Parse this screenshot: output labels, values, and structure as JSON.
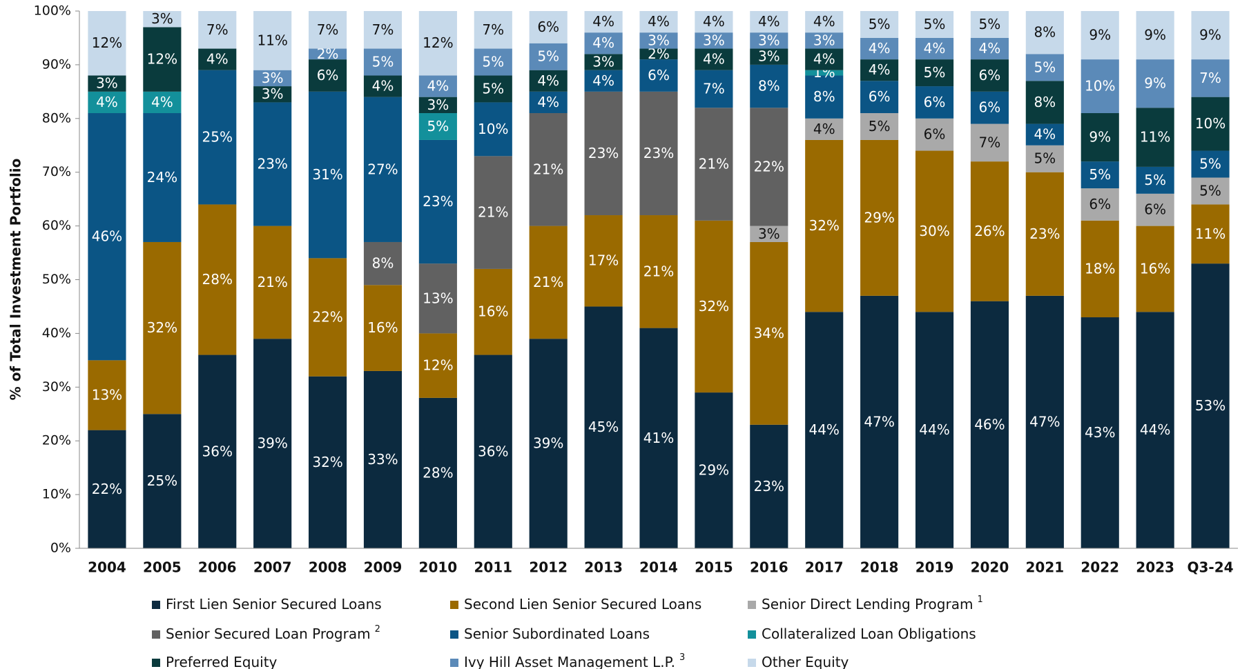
{
  "chart_data": {
    "type": "stacked_bar",
    "y_label": "% of Total Investment Portfolio",
    "categories": [
      "2004",
      "2005",
      "2006",
      "2007",
      "2008",
      "2009",
      "2010",
      "2011",
      "2012",
      "2013",
      "2014",
      "2015",
      "2016",
      "2017",
      "2018",
      "2019",
      "2020",
      "2021",
      "2022",
      "2023",
      "Q3-24"
    ],
    "ylim": [
      0,
      100
    ],
    "yticks": [
      {
        "value": 0,
        "label": "0%"
      },
      {
        "value": 10,
        "label": "10%"
      },
      {
        "value": 20,
        "label": "20%"
      },
      {
        "value": 30,
        "label": "30%"
      },
      {
        "value": 40,
        "label": "40%"
      },
      {
        "value": 50,
        "label": "50%"
      },
      {
        "value": 60,
        "label": "60%"
      },
      {
        "value": 70,
        "label": "70%"
      },
      {
        "value": 80,
        "label": "80%"
      },
      {
        "value": 90,
        "label": "90%"
      },
      {
        "value": 100,
        "label": "100%"
      }
    ],
    "legend": "bottom",
    "series": [
      {
        "name": "First Lien Senior Secured Loans",
        "color": "#0c2a3f",
        "label_color": "#ffffff",
        "values": [
          22,
          25,
          36,
          39,
          32,
          33,
          28,
          36,
          39,
          45,
          41,
          29,
          23,
          44,
          47,
          44,
          46,
          47,
          43,
          44,
          53
        ],
        "value_labels": [
          "22%",
          "25%",
          "36%",
          "39%",
          "32%",
          "33%",
          "28%",
          "36%",
          "39%",
          "45%",
          "41%",
          "29%",
          "23%",
          "44%",
          "47%",
          "44%",
          "46%",
          "47%",
          "43%",
          "44%",
          "53%"
        ]
      },
      {
        "name": "Second Lien Senior Secured Loans",
        "color": "#9a6a00",
        "label_color": "#ffffff",
        "values": [
          13,
          32,
          28,
          21,
          22,
          16,
          12,
          16,
          21,
          17,
          21,
          32,
          34,
          32,
          29,
          30,
          26,
          23,
          18,
          16,
          11
        ],
        "value_labels": [
          "13%",
          "32%",
          "28%",
          "21%",
          "22%",
          "16%",
          "12%",
          "16%",
          "21%",
          "17%",
          "21%",
          "32%",
          "34%",
          "32%",
          "29%",
          "30%",
          "26%",
          "23%",
          "18%",
          "16%",
          "11%"
        ]
      },
      {
        "name": "Senior Direct Lending Program",
        "footnote": "1",
        "color": "#a9a9a9",
        "label_color": "#111111",
        "values": [
          null,
          null,
          null,
          null,
          null,
          null,
          null,
          null,
          null,
          null,
          null,
          null,
          3,
          4,
          5,
          6,
          7,
          5,
          6,
          6,
          5
        ],
        "value_labels": [
          null,
          null,
          null,
          null,
          null,
          null,
          null,
          null,
          null,
          null,
          null,
          null,
          "3%",
          "4%",
          "5%",
          "6%",
          "7%",
          "5%",
          "6%",
          "6%",
          "5%"
        ]
      },
      {
        "name": "Senior Secured Loan Program",
        "footnote": "2",
        "color": "#616161",
        "label_color": "#ffffff",
        "values": [
          null,
          null,
          null,
          null,
          null,
          8,
          13,
          21,
          21,
          23,
          23,
          21,
          22,
          null,
          null,
          null,
          null,
          null,
          null,
          null,
          null
        ],
        "value_labels": [
          null,
          null,
          null,
          null,
          null,
          "8%",
          "13%",
          "21%",
          "21%",
          "23%",
          "23%",
          "21%",
          "22%",
          null,
          null,
          null,
          null,
          null,
          null,
          null,
          null
        ]
      },
      {
        "name": "Senior Subordinated Loans",
        "color": "#0b5585",
        "label_color": "#ffffff",
        "values": [
          46,
          24,
          25,
          23,
          31,
          27,
          23,
          10,
          4,
          4,
          6,
          7,
          8,
          8,
          6,
          6,
          6,
          4,
          5,
          5,
          5
        ],
        "value_labels": [
          "46%",
          "24%",
          "25%",
          "23%",
          "31%",
          "27%",
          "23%",
          "10%",
          "4%",
          "4%",
          "6%",
          "7%",
          "8%",
          "8%",
          "6%",
          "6%",
          "6%",
          "4%",
          "5%",
          "5%",
          "5%"
        ]
      },
      {
        "name": "Collateralized Loan Obligations",
        "color": "#13909b",
        "label_color": "#ffffff",
        "values": [
          4,
          4,
          null,
          null,
          null,
          null,
          5,
          null,
          null,
          null,
          null,
          null,
          null,
          1,
          null,
          null,
          null,
          null,
          null,
          null,
          null
        ],
        "value_labels": [
          "4%",
          "4%",
          null,
          null,
          null,
          null,
          "5%",
          null,
          null,
          null,
          null,
          null,
          null,
          "1%",
          null,
          null,
          null,
          null,
          null,
          null,
          null
        ]
      },
      {
        "name": "Preferred Equity",
        "color": "#0a3b3d",
        "label_color": "#ffffff",
        "values": [
          3,
          12,
          4,
          3,
          6,
          4,
          3,
          5,
          4,
          3,
          2,
          4,
          3,
          4,
          4,
          5,
          6,
          8,
          9,
          11,
          10
        ],
        "value_labels": [
          "3%",
          "12%",
          "4%",
          "3%",
          "6%",
          "4%",
          "3%",
          "5%",
          "4%",
          "3%",
          "2%",
          "4%",
          "3%",
          "4%",
          "4%",
          "5%",
          "6%",
          "8%",
          "9%",
          "11%",
          "10%"
        ]
      },
      {
        "name": "Ivy Hill Asset Management L.P.",
        "footnote": "3",
        "color": "#5b8ab8",
        "label_color": "#ffffff",
        "values": [
          null,
          null,
          null,
          3,
          2,
          5,
          4,
          5,
          5,
          4,
          3,
          3,
          3,
          3,
          4,
          4,
          4,
          5,
          10,
          9,
          7
        ],
        "value_labels": [
          null,
          null,
          null,
          "3%",
          "2%",
          "5%",
          "4%",
          "5%",
          "5%",
          "4%",
          "3%",
          "3%",
          "3%",
          "3%",
          "4%",
          "4%",
          "4%",
          "5%",
          "10%",
          "9%",
          "7%"
        ]
      },
      {
        "name": "Other Equity",
        "color": "#c6d9ea",
        "label_color": "#111111",
        "values": [
          12,
          3,
          7,
          11,
          7,
          7,
          12,
          7,
          6,
          4,
          4,
          4,
          4,
          4,
          5,
          5,
          5,
          8,
          9,
          9,
          9
        ],
        "value_labels": [
          "12%",
          "3%",
          "7%",
          "11%",
          "7%",
          "7%",
          "12%",
          "7%",
          "6%",
          "4%",
          "4%",
          "4%",
          "4%",
          "4%",
          "5%",
          "5%",
          "5%",
          "8%",
          "9%",
          "9%",
          "9%"
        ]
      }
    ]
  }
}
